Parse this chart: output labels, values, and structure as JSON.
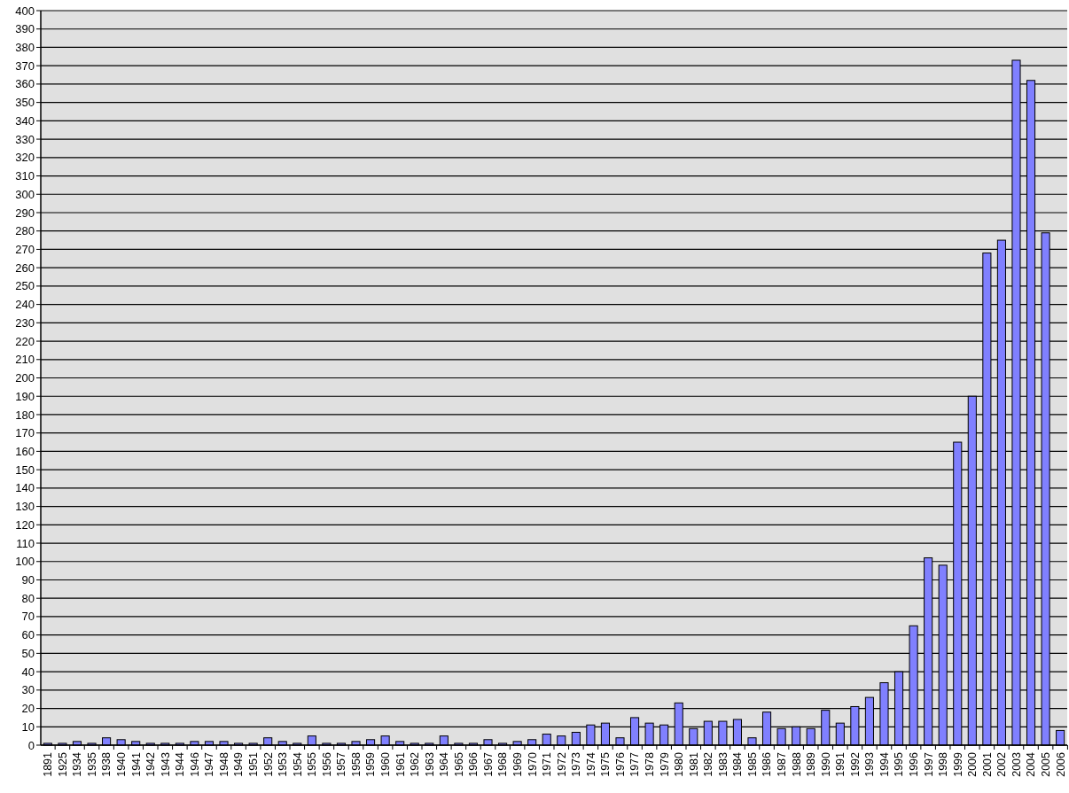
{
  "chart_data": {
    "type": "bar",
    "categories": [
      "1891",
      "1925",
      "1934",
      "1935",
      "1938",
      "1940",
      "1941",
      "1942",
      "1943",
      "1944",
      "1946",
      "1947",
      "1948",
      "1949",
      "1951",
      "1952",
      "1953",
      "1954",
      "1955",
      "1956",
      "1957",
      "1958",
      "1959",
      "1960",
      "1961",
      "1962",
      "1963",
      "1964",
      "1965",
      "1966",
      "1967",
      "1968",
      "1969",
      "1970",
      "1971",
      "1972",
      "1973",
      "1974",
      "1975",
      "1976",
      "1977",
      "1978",
      "1979",
      "1980",
      "1981",
      "1982",
      "1983",
      "1984",
      "1985",
      "1986",
      "1987",
      "1988",
      "1989",
      "1990",
      "1991",
      "1992",
      "1993",
      "1994",
      "1995",
      "1996",
      "1997",
      "1998",
      "1999",
      "2000",
      "2001",
      "2002",
      "2003",
      "2004",
      "2005",
      "2006"
    ],
    "values": [
      1,
      1,
      2,
      1,
      4,
      3,
      2,
      1,
      1,
      1,
      2,
      2,
      2,
      1,
      1,
      4,
      2,
      1,
      5,
      1,
      1,
      2,
      3,
      5,
      2,
      1,
      1,
      5,
      1,
      1,
      3,
      1,
      2,
      3,
      6,
      5,
      7,
      11,
      12,
      4,
      15,
      12,
      11,
      23,
      9,
      13,
      13,
      14,
      4,
      18,
      9,
      10,
      9,
      19,
      12,
      21,
      26,
      34,
      40,
      65,
      102,
      98,
      165,
      190,
      268,
      275,
      373,
      362,
      279,
      8
    ],
    "color": "#8080ff",
    "ylim": [
      0,
      400
    ],
    "yticks": [
      0,
      10,
      20,
      30,
      40,
      50,
      60,
      70,
      80,
      90,
      100,
      110,
      120,
      130,
      140,
      150,
      160,
      170,
      180,
      190,
      200,
      210,
      220,
      230,
      240,
      250,
      260,
      270,
      280,
      290,
      300,
      310,
      320,
      330,
      340,
      350,
      360,
      370,
      380,
      390,
      400
    ],
    "grid": "y"
  }
}
